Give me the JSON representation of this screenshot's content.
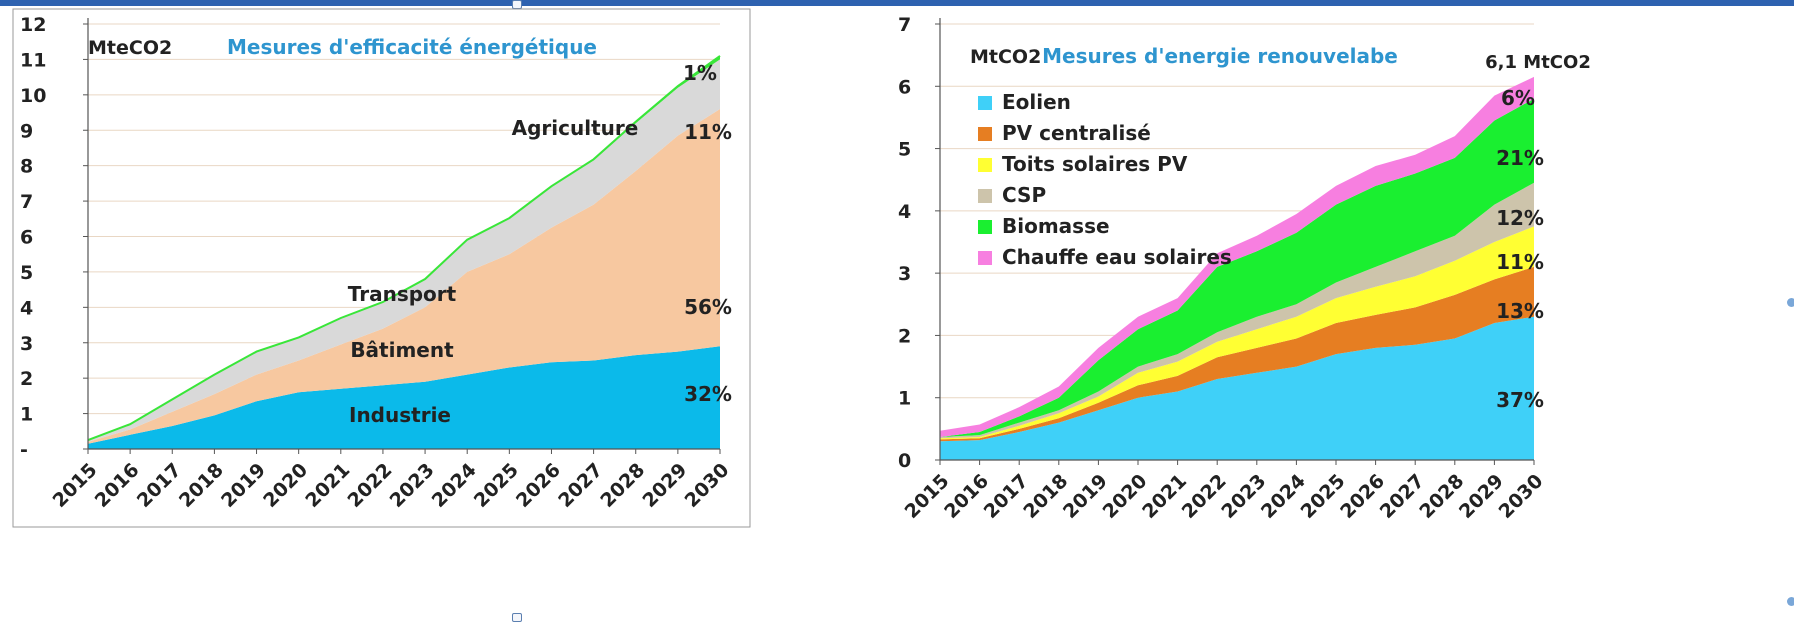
{
  "chart_data": [
    {
      "type": "area",
      "title": "Mesures d'efficacité énergétique",
      "unit_label": "MteCO2",
      "x": [
        "2015",
        "2016",
        "2017",
        "2018",
        "2019",
        "2020",
        "2021",
        "2022",
        "2023",
        "2024",
        "2025",
        "2026",
        "2027",
        "2028",
        "2029",
        "2030"
      ],
      "yticks": [
        "-",
        "1",
        "2",
        "3",
        "4",
        "5",
        "6",
        "7",
        "8",
        "9",
        "10",
        "11",
        "12"
      ],
      "ylim": [
        0,
        12
      ],
      "grid": true,
      "series": [
        {
          "name": "Industrie",
          "color": "#0bbaea",
          "values": [
            0.15,
            0.4,
            0.65,
            0.95,
            1.35,
            1.6,
            1.7,
            1.8,
            1.9,
            2.1,
            2.3,
            2.45,
            2.5,
            2.65,
            2.75,
            2.9
          ]
        },
        {
          "name": "Bâtiment",
          "color": "#f7c8a0",
          "values": [
            0.05,
            0.15,
            0.4,
            0.6,
            0.75,
            0.9,
            1.25,
            1.6,
            2.1,
            2.9,
            3.2,
            3.8,
            4.4,
            5.2,
            6.1,
            6.7
          ]
        },
        {
          "name": "Transport",
          "color": "#d9d9d9",
          "values": [
            0.05,
            0.15,
            0.35,
            0.55,
            0.65,
            0.65,
            0.75,
            0.75,
            0.8,
            0.9,
            1.0,
            1.15,
            1.25,
            1.35,
            1.35,
            1.4
          ]
        },
        {
          "name": "Agriculture",
          "color": "#39e639",
          "values": [
            0.0,
            0.0,
            0.0,
            0.0,
            0.0,
            0.0,
            0.0,
            0.0,
            0.0,
            0.01,
            0.02,
            0.02,
            0.03,
            0.04,
            0.05,
            0.1
          ]
        }
      ],
      "annotations": [
        {
          "text": "Industrie"
        },
        {
          "text": "Bâtiment"
        },
        {
          "text": "Transport"
        },
        {
          "text": "Agriculture"
        },
        {
          "text": "1%"
        },
        {
          "text": "11%"
        },
        {
          "text": "56%"
        },
        {
          "text": "32%"
        }
      ]
    },
    {
      "type": "area",
      "title": "Mesures d'energie renouvelabe",
      "unit_label": "MtCO2",
      "total_label": "6,1 MtCO2",
      "x": [
        "2015",
        "2016",
        "2017",
        "2018",
        "2019",
        "2020",
        "2021",
        "2022",
        "2023",
        "2024",
        "2025",
        "2026",
        "2027",
        "2028",
        "2029",
        "2030"
      ],
      "yticks": [
        "0",
        "1",
        "2",
        "3",
        "4",
        "5",
        "6",
        "7"
      ],
      "ylim": [
        0,
        7
      ],
      "grid": true,
      "legend_position": "top-left",
      "series": [
        {
          "name": "Eolien",
          "color": "#3fd0f8",
          "values": [
            0.3,
            0.32,
            0.45,
            0.6,
            0.8,
            1.0,
            1.1,
            1.3,
            1.4,
            1.5,
            1.7,
            1.8,
            1.85,
            1.95,
            2.2,
            2.3
          ]
        },
        {
          "name": "PV centralisé",
          "color": "#e67e22",
          "values": [
            0.03,
            0.03,
            0.05,
            0.07,
            0.12,
            0.2,
            0.25,
            0.35,
            0.4,
            0.45,
            0.5,
            0.53,
            0.6,
            0.7,
            0.7,
            0.8
          ]
        },
        {
          "name": "Toits solaires PV",
          "color": "#ffff33",
          "values": [
            0.02,
            0.02,
            0.05,
            0.08,
            0.1,
            0.2,
            0.23,
            0.25,
            0.3,
            0.35,
            0.4,
            0.45,
            0.5,
            0.55,
            0.6,
            0.65
          ]
        },
        {
          "name": "CSP",
          "color": "#cdc4ab",
          "values": [
            0.02,
            0.03,
            0.05,
            0.05,
            0.08,
            0.1,
            0.12,
            0.15,
            0.2,
            0.2,
            0.25,
            0.32,
            0.4,
            0.4,
            0.6,
            0.7
          ]
        },
        {
          "name": "Biomasse",
          "color": "#1aef30",
          "values": [
            0.0,
            0.05,
            0.1,
            0.2,
            0.5,
            0.6,
            0.7,
            1.05,
            1.05,
            1.15,
            1.25,
            1.3,
            1.25,
            1.25,
            1.35,
            1.35
          ]
        },
        {
          "name": "Chauffe eau solaires",
          "color": "#f77fe0",
          "values": [
            0.1,
            0.12,
            0.15,
            0.18,
            0.2,
            0.2,
            0.2,
            0.22,
            0.25,
            0.3,
            0.3,
            0.32,
            0.3,
            0.35,
            0.4,
            0.35
          ]
        }
      ],
      "annotations": [
        {
          "text": "6%"
        },
        {
          "text": "21%"
        },
        {
          "text": "12%"
        },
        {
          "text": "11%"
        },
        {
          "text": "13%"
        },
        {
          "text": "37%"
        }
      ]
    }
  ]
}
